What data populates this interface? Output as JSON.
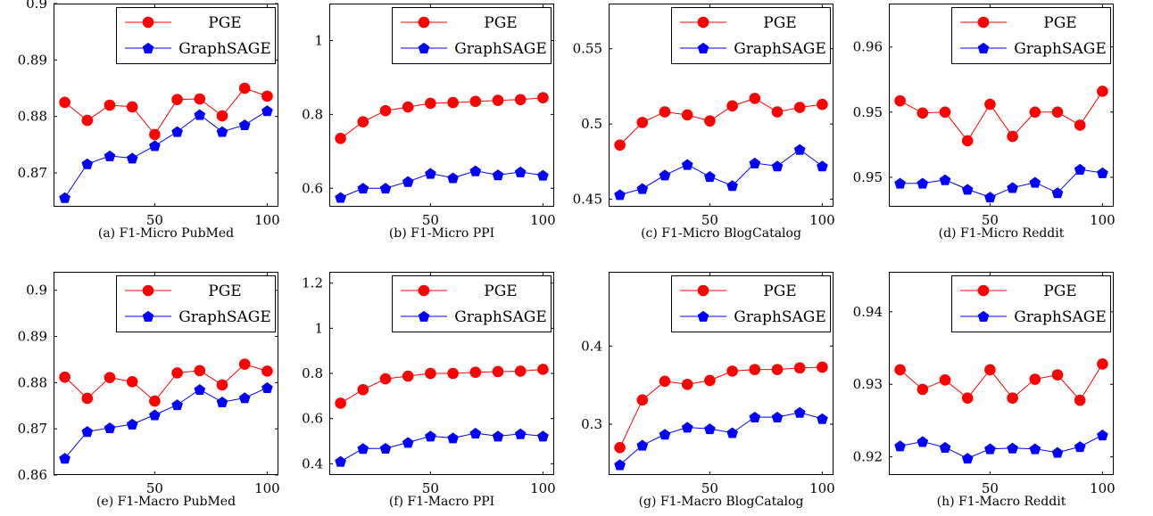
{
  "colors": {
    "pge": "#ff0000",
    "graphsage": "#0000ff"
  },
  "chart_data": [
    {
      "type": "line",
      "caption": "(a) F1-Micro PubMed",
      "xlim": [
        5,
        105
      ],
      "ylim": [
        0.864,
        0.9
      ],
      "xticks": [
        50,
        100
      ],
      "yticks": [
        0.87,
        0.88,
        0.89,
        0.9
      ],
      "ytick_labels": [
        "0.87",
        "0.88",
        "0.89",
        "0.9"
      ],
      "legend": "top-right",
      "x": [
        10,
        20,
        30,
        40,
        50,
        60,
        70,
        80,
        90,
        100
      ],
      "series": [
        {
          "name": "PGE",
          "marker": "circle",
          "values": [
            0.8825,
            0.8793,
            0.882,
            0.8817,
            0.8768,
            0.883,
            0.8831,
            0.8801,
            0.885,
            0.8836
          ]
        },
        {
          "name": "GraphSAGE",
          "marker": "pentagon",
          "values": [
            0.8656,
            0.8716,
            0.873,
            0.8726,
            0.8748,
            0.8773,
            0.8803,
            0.8773,
            0.8785,
            0.881
          ]
        }
      ]
    },
    {
      "type": "line",
      "caption": "(b) F1-Micro PPI",
      "xlim": [
        5,
        105
      ],
      "ylim": [
        0.55,
        1.1
      ],
      "xticks": [
        50,
        100
      ],
      "yticks": [
        0.6,
        0.8,
        1
      ],
      "ytick_labels": [
        "0.6",
        "0.8",
        "1"
      ],
      "legend": "top-right",
      "x": [
        10,
        20,
        30,
        40,
        50,
        60,
        70,
        80,
        90,
        100
      ],
      "series": [
        {
          "name": "PGE",
          "marker": "circle",
          "values": [
            0.735,
            0.78,
            0.81,
            0.82,
            0.83,
            0.832,
            0.835,
            0.838,
            0.84,
            0.845
          ]
        },
        {
          "name": "GraphSAGE",
          "marker": "pentagon",
          "values": [
            0.575,
            0.6,
            0.6,
            0.618,
            0.64,
            0.628,
            0.647,
            0.636,
            0.644,
            0.635
          ]
        }
      ]
    },
    {
      "type": "line",
      "caption": "(c) F1-Micro BlogCatalog",
      "xlim": [
        5,
        105
      ],
      "ylim": [
        0.445,
        0.58
      ],
      "xticks": [
        50,
        100
      ],
      "yticks": [
        0.45,
        0.5,
        0.55
      ],
      "ytick_labels": [
        "0.45",
        "0.5",
        "0.55"
      ],
      "legend": "top-right",
      "x": [
        10,
        20,
        30,
        40,
        50,
        60,
        70,
        80,
        90,
        100
      ],
      "series": [
        {
          "name": "PGE",
          "marker": "circle",
          "values": [
            0.486,
            0.501,
            0.508,
            0.506,
            0.502,
            0.512,
            0.517,
            0.508,
            0.511,
            0.513
          ]
        },
        {
          "name": "GraphSAGE",
          "marker": "pentagon",
          "values": [
            0.453,
            0.457,
            0.466,
            0.473,
            0.465,
            0.459,
            0.474,
            0.472,
            0.483,
            0.472
          ]
        }
      ]
    },
    {
      "type": "line",
      "caption": "(d) F1-Micro Reddit",
      "xlim": [
        5,
        105
      ],
      "ylim": [
        0.9441,
        0.9675
      ],
      "xticks": [
        50,
        100
      ],
      "yticks": [
        0.9475,
        0.955,
        0.9625
      ],
      "ytick_labels": [
        "0.95",
        "0.95",
        "0.96"
      ],
      "legend": "top-right",
      "x": [
        10,
        20,
        30,
        40,
        50,
        60,
        70,
        80,
        90,
        100
      ],
      "series": [
        {
          "name": "PGE",
          "marker": "circle",
          "values": [
            0.9563,
            0.9549,
            0.955,
            0.9517,
            0.9559,
            0.9522,
            0.955,
            0.955,
            0.9535,
            0.9574
          ]
        },
        {
          "name": "GraphSAGE",
          "marker": "pentagon",
          "values": [
            0.9468,
            0.9468,
            0.9472,
            0.9461,
            0.9452,
            0.9463,
            0.9469,
            0.9457,
            0.9484,
            0.948
          ]
        }
      ]
    },
    {
      "type": "line",
      "caption": "(e) F1-Macro PubMed",
      "xlim": [
        5,
        105
      ],
      "ylim": [
        0.86,
        0.904
      ],
      "xticks": [
        50,
        100
      ],
      "yticks": [
        0.86,
        0.87,
        0.88,
        0.89,
        0.9
      ],
      "ytick_labels": [
        "0.86",
        "0.87",
        "0.88",
        "0.89",
        "0.9"
      ],
      "legend": "top-right",
      "x": [
        10,
        20,
        30,
        40,
        50,
        60,
        70,
        80,
        90,
        100
      ],
      "series": [
        {
          "name": "PGE",
          "marker": "circle",
          "values": [
            0.8812,
            0.8766,
            0.8811,
            0.8802,
            0.876,
            0.8821,
            0.8826,
            0.8795,
            0.884,
            0.8825
          ]
        },
        {
          "name": "GraphSAGE",
          "marker": "pentagon",
          "values": [
            0.8636,
            0.8694,
            0.8702,
            0.871,
            0.873,
            0.8752,
            0.8785,
            0.8758,
            0.8767,
            0.8789
          ]
        }
      ]
    },
    {
      "type": "line",
      "caption": "(f) F1-Macro PPI",
      "xlim": [
        5,
        105
      ],
      "ylim": [
        0.35,
        1.25
      ],
      "xticks": [
        50,
        100
      ],
      "yticks": [
        0.4,
        0.6,
        0.8,
        1,
        1.2
      ],
      "ytick_labels": [
        "0.4",
        "0.6",
        "0.8",
        "1",
        "1.2"
      ],
      "legend": "top-right",
      "x": [
        10,
        20,
        30,
        40,
        50,
        60,
        70,
        80,
        90,
        100
      ],
      "series": [
        {
          "name": "PGE",
          "marker": "circle",
          "values": [
            0.668,
            0.728,
            0.776,
            0.788,
            0.8,
            0.8,
            0.805,
            0.808,
            0.81,
            0.818
          ]
        },
        {
          "name": "GraphSAGE",
          "marker": "pentagon",
          "values": [
            0.41,
            0.467,
            0.468,
            0.494,
            0.522,
            0.514,
            0.535,
            0.522,
            0.532,
            0.522
          ]
        }
      ]
    },
    {
      "type": "line",
      "caption": "(g) F1-Macro BlogCatalog",
      "xlim": [
        5,
        105
      ],
      "ylim": [
        0.235,
        0.495
      ],
      "xticks": [
        50,
        100
      ],
      "yticks": [
        0.3,
        0.4
      ],
      "ytick_labels": [
        "0.3",
        "0.4"
      ],
      "legend": "top-right",
      "x": [
        10,
        20,
        30,
        40,
        50,
        60,
        70,
        80,
        90,
        100
      ],
      "series": [
        {
          "name": "PGE",
          "marker": "circle",
          "values": [
            0.27,
            0.331,
            0.355,
            0.351,
            0.356,
            0.368,
            0.37,
            0.37,
            0.372,
            0.373
          ]
        },
        {
          "name": "GraphSAGE",
          "marker": "pentagon",
          "values": [
            0.248,
            0.273,
            0.287,
            0.296,
            0.294,
            0.289,
            0.309,
            0.309,
            0.315,
            0.307
          ]
        }
      ]
    },
    {
      "type": "line",
      "caption": "(h) F1-Macro Reddit",
      "xlim": [
        5,
        105
      ],
      "ylim": [
        0.9175,
        0.9455
      ],
      "xticks": [
        50,
        100
      ],
      "yticks": [
        0.92,
        0.93,
        0.94
      ],
      "ytick_labels": [
        "0.92",
        "0.93",
        "0.94"
      ],
      "legend": "top-right",
      "x": [
        10,
        20,
        30,
        40,
        50,
        60,
        70,
        80,
        90,
        100
      ],
      "series": [
        {
          "name": "PGE",
          "marker": "circle",
          "values": [
            0.932,
            0.9293,
            0.9306,
            0.9281,
            0.932,
            0.9281,
            0.9307,
            0.9313,
            0.9278,
            0.9328
          ]
        },
        {
          "name": "GraphSAGE",
          "marker": "pentagon",
          "values": [
            0.9215,
            0.9221,
            0.9213,
            0.9198,
            0.9211,
            0.9212,
            0.9211,
            0.9206,
            0.9214,
            0.923
          ]
        }
      ]
    }
  ]
}
